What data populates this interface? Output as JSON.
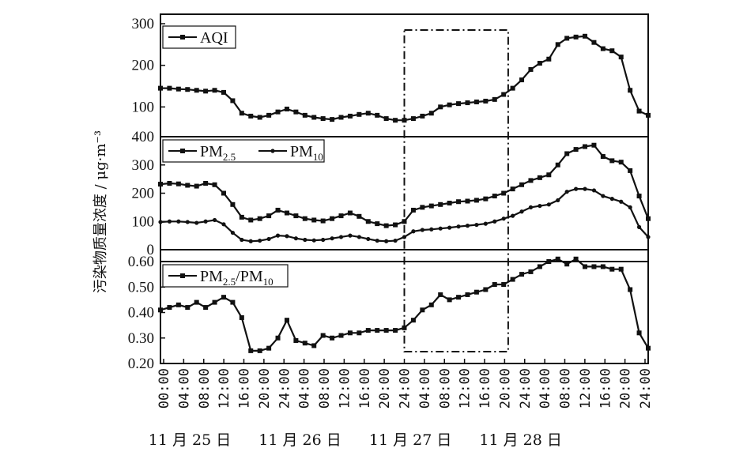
{
  "chart_data": {
    "type": "line",
    "ylabel": "污染物质量浓度 / μg·m⁻³",
    "x_tick_labels": [
      "00:00",
      "04:00",
      "08:00",
      "12:00",
      "16:00",
      "20:00",
      "24:00",
      "04:00",
      "08:00",
      "12:00",
      "16:00",
      "20:00",
      "24:00",
      "04:00",
      "08:00",
      "12:00",
      "16:00",
      "20:00",
      "24:00",
      "04:00",
      "08:00",
      "12:00",
      "16:00",
      "20:00",
      "24:00"
    ],
    "x_date_labels": [
      {
        "label": "11 月 25 日",
        "tick_index": 1.3
      },
      {
        "label": "11 月 26 日",
        "tick_index": 6.8
      },
      {
        "label": "11 月 27 日",
        "tick_index": 12.3
      },
      {
        "label": "11 月 28 日",
        "tick_index": 17.8
      }
    ],
    "x_range_hours": [
      0,
      108
    ],
    "highlight_window_hours": [
      54,
      77
    ],
    "panels": [
      {
        "id": "aqi",
        "ylim": [
          0,
          300
        ],
        "yticks": [
          "300",
          "200",
          "100"
        ],
        "ytick_values": [
          300,
          200,
          100
        ],
        "legend": [
          {
            "name": "AQI",
            "marker": "square"
          }
        ],
        "series": [
          {
            "name": "AQI",
            "marker": "square",
            "x": [
              0,
              2,
              4,
              6,
              8,
              10,
              12,
              14,
              16,
              18,
              20,
              22,
              24,
              26,
              28,
              30,
              32,
              34,
              36,
              38,
              40,
              42,
              44,
              46,
              48,
              50,
              52,
              54,
              56,
              58,
              60,
              62,
              64,
              66,
              68,
              70,
              72,
              74,
              76,
              78,
              80,
              82,
              84,
              86,
              88,
              90,
              92,
              94,
              96,
              98,
              100,
              102,
              104,
              106,
              108
            ],
            "values": [
              145,
              145,
              143,
              142,
              140,
              138,
              140,
              135,
              115,
              85,
              78,
              75,
              80,
              88,
              95,
              88,
              80,
              75,
              72,
              70,
              75,
              78,
              82,
              85,
              80,
              72,
              68,
              68,
              72,
              78,
              85,
              100,
              105,
              108,
              110,
              112,
              114,
              118,
              130,
              145,
              165,
              190,
              205,
              215,
              250,
              265,
              268,
              270,
              255,
              240,
              235,
              220,
              140,
              90,
              80
            ]
          }
        ]
      },
      {
        "id": "pm",
        "ylim": [
          0,
          400
        ],
        "yticks": [
          "400",
          "300",
          "200",
          "100",
          "0"
        ],
        "ytick_values": [
          400,
          300,
          200,
          100,
          0
        ],
        "legend": [
          {
            "name": "PM",
            "sub": "2.5",
            "marker": "square"
          },
          {
            "name": "PM",
            "sub": "10",
            "marker": "circle"
          }
        ],
        "series": [
          {
            "name": "PM2.5",
            "marker": "square",
            "x": [
              0,
              2,
              4,
              6,
              8,
              10,
              12,
              14,
              16,
              18,
              20,
              22,
              24,
              26,
              28,
              30,
              32,
              34,
              36,
              38,
              40,
              42,
              44,
              46,
              48,
              50,
              52,
              54,
              56,
              58,
              60,
              62,
              64,
              66,
              68,
              70,
              72,
              74,
              76,
              78,
              80,
              82,
              84,
              86,
              88,
              90,
              92,
              94,
              96,
              98,
              100,
              102,
              104,
              106,
              108
            ],
            "values": [
              232,
              235,
              233,
              228,
              225,
              235,
              230,
              200,
              160,
              115,
              105,
              110,
              120,
              140,
              130,
              120,
              110,
              105,
              102,
              110,
              120,
              130,
              118,
              100,
              92,
              85,
              88,
              100,
              140,
              150,
              155,
              160,
              165,
              170,
              172,
              175,
              180,
              190,
              200,
              215,
              230,
              245,
              255,
              265,
              300,
              340,
              355,
              365,
              370,
              330,
              315,
              310,
              280,
              190,
              110
            ]
          },
          {
            "name": "PM10",
            "marker": "circle",
            "x": [
              0,
              2,
              4,
              6,
              8,
              10,
              12,
              14,
              16,
              18,
              20,
              22,
              24,
              26,
              28,
              30,
              32,
              34,
              36,
              38,
              40,
              42,
              44,
              46,
              48,
              50,
              52,
              54,
              56,
              58,
              60,
              62,
              64,
              66,
              68,
              70,
              72,
              74,
              76,
              78,
              80,
              82,
              84,
              86,
              88,
              90,
              92,
              94,
              96,
              98,
              100,
              102,
              104,
              106,
              108
            ],
            "values": [
              98,
              100,
              100,
              98,
              95,
              100,
              105,
              90,
              60,
              35,
              30,
              32,
              38,
              50,
              48,
              40,
              35,
              33,
              35,
              40,
              45,
              50,
              45,
              38,
              32,
              30,
              32,
              45,
              65,
              70,
              72,
              75,
              78,
              82,
              85,
              88,
              92,
              100,
              110,
              120,
              135,
              150,
              155,
              160,
              175,
              205,
              215,
              215,
              210,
              190,
              180,
              170,
              150,
              80,
              45
            ]
          }
        ]
      },
      {
        "id": "ratio",
        "ylim": [
          0.2,
          0.6
        ],
        "yticks": [
          "0.60",
          "0.50",
          "0.40",
          "0.30",
          "0.20"
        ],
        "ytick_values": [
          0.6,
          0.5,
          0.4,
          0.3,
          0.2
        ],
        "legend": [
          {
            "name": "PM",
            "sub": "2.5",
            "name2": "/PM",
            "sub2": "10",
            "marker": "square"
          }
        ],
        "series": [
          {
            "name": "PM2.5/PM10",
            "marker": "square",
            "x": [
              0,
              2,
              4,
              6,
              8,
              10,
              12,
              14,
              16,
              18,
              20,
              22,
              24,
              26,
              28,
              30,
              32,
              34,
              36,
              38,
              40,
              42,
              44,
              46,
              48,
              50,
              52,
              54,
              56,
              58,
              60,
              62,
              64,
              66,
              68,
              70,
              72,
              74,
              76,
              78,
              80,
              82,
              84,
              86,
              88,
              90,
              92,
              94,
              96,
              98,
              100,
              102,
              104,
              106,
              108
            ],
            "values": [
              0.41,
              0.42,
              0.43,
              0.42,
              0.44,
              0.42,
              0.44,
              0.46,
              0.44,
              0.38,
              0.25,
              0.25,
              0.26,
              0.3,
              0.37,
              0.29,
              0.28,
              0.27,
              0.31,
              0.3,
              0.31,
              0.32,
              0.32,
              0.33,
              0.33,
              0.33,
              0.33,
              0.34,
              0.37,
              0.41,
              0.43,
              0.47,
              0.45,
              0.46,
              0.47,
              0.48,
              0.49,
              0.51,
              0.51,
              0.53,
              0.55,
              0.56,
              0.58,
              0.6,
              0.61,
              0.59,
              0.61,
              0.58,
              0.58,
              0.58,
              0.57,
              0.57,
              0.49,
              0.32,
              0.26
            ]
          }
        ]
      }
    ]
  }
}
